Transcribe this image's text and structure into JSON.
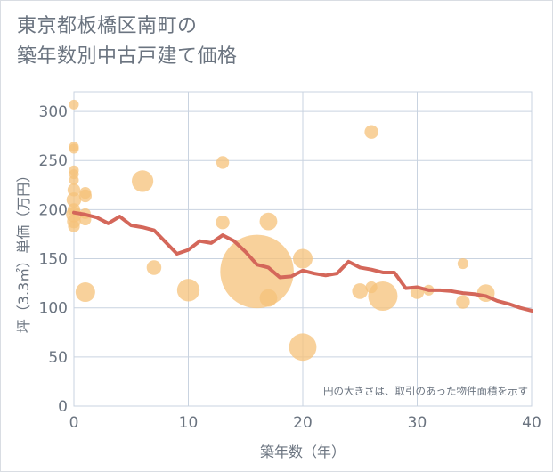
{
  "title": {
    "line1": "東京都板橋区南町の",
    "line2": "築年数別中古戸建て価格"
  },
  "chart_data": {
    "type": "scatter",
    "xlabel": "築年数（年）",
    "ylabel": "坪（3.3㎡）単価（万円）",
    "xlim": [
      0,
      40
    ],
    "ylim": [
      0,
      320
    ],
    "xticks": [
      0,
      10,
      20,
      30,
      40
    ],
    "yticks": [
      0,
      50,
      100,
      150,
      200,
      250,
      300
    ],
    "grid": true,
    "note": "円の大きさは、取引のあった物件面積を示す",
    "colors": {
      "bubble": "#f5c27a",
      "line": "#d4675a",
      "grid": "#c9d3e0"
    },
    "bubbles": [
      {
        "x": 0,
        "y": 307,
        "size": 1
      },
      {
        "x": 0,
        "y": 264,
        "size": 1
      },
      {
        "x": 0,
        "y": 262,
        "size": 1
      },
      {
        "x": 0,
        "y": 240,
        "size": 1
      },
      {
        "x": 0,
        "y": 236,
        "size": 1
      },
      {
        "x": 0,
        "y": 230,
        "size": 1
      },
      {
        "x": 0,
        "y": 220,
        "size": 1.3
      },
      {
        "x": 0,
        "y": 210,
        "size": 1.5
      },
      {
        "x": 0,
        "y": 200,
        "size": 1.3
      },
      {
        "x": 0,
        "y": 195,
        "size": 1.6
      },
      {
        "x": 0,
        "y": 188,
        "size": 1.4
      },
      {
        "x": 0,
        "y": 183,
        "size": 1.2
      },
      {
        "x": 1,
        "y": 217,
        "size": 1.2
      },
      {
        "x": 1,
        "y": 214,
        "size": 1.3
      },
      {
        "x": 1,
        "y": 196,
        "size": 1.1
      },
      {
        "x": 1,
        "y": 190,
        "size": 1.2
      },
      {
        "x": 1,
        "y": 116,
        "size": 2
      },
      {
        "x": 6,
        "y": 229,
        "size": 2.2
      },
      {
        "x": 7,
        "y": 141,
        "size": 1.5
      },
      {
        "x": 10,
        "y": 118,
        "size": 2.3
      },
      {
        "x": 13,
        "y": 248,
        "size": 1.3
      },
      {
        "x": 13,
        "y": 187,
        "size": 1.4
      },
      {
        "x": 16,
        "y": 137,
        "size": 7.5
      },
      {
        "x": 17,
        "y": 188,
        "size": 1.8
      },
      {
        "x": 17,
        "y": 110,
        "size": 1.8
      },
      {
        "x": 20,
        "y": 150,
        "size": 2
      },
      {
        "x": 20,
        "y": 60,
        "size": 2.8
      },
      {
        "x": 25,
        "y": 117,
        "size": 1.6
      },
      {
        "x": 26,
        "y": 279,
        "size": 1.4
      },
      {
        "x": 26,
        "y": 121,
        "size": 1.2
      },
      {
        "x": 27,
        "y": 112,
        "size": 3
      },
      {
        "x": 30,
        "y": 116,
        "size": 1.4
      },
      {
        "x": 31,
        "y": 118,
        "size": 1.1
      },
      {
        "x": 34,
        "y": 145,
        "size": 1.1
      },
      {
        "x": 34,
        "y": 106,
        "size": 1.4
      },
      {
        "x": 36,
        "y": 115,
        "size": 1.8
      }
    ],
    "line": {
      "x": [
        0,
        1,
        2,
        3,
        4,
        5,
        6,
        7,
        8,
        9,
        10,
        11,
        12,
        13,
        14,
        15,
        16,
        17,
        18,
        19,
        20,
        21,
        22,
        23,
        24,
        25,
        26,
        27,
        28,
        29,
        30,
        31,
        32,
        33,
        34,
        35,
        36,
        37,
        38,
        39,
        40
      ],
      "y": [
        197,
        195,
        192,
        186,
        193,
        184,
        182,
        179,
        167,
        155,
        159,
        168,
        166,
        174,
        168,
        157,
        144,
        141,
        131,
        132,
        138,
        135,
        133,
        135,
        147,
        141,
        139,
        136,
        136,
        120,
        121,
        118,
        118,
        117,
        115,
        114,
        112,
        107,
        104,
        100,
        97
      ]
    }
  }
}
